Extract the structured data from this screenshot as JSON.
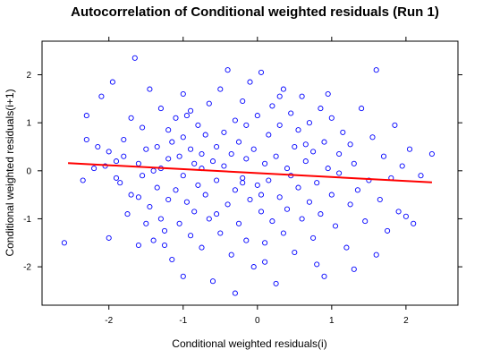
{
  "chart_data": {
    "type": "scatter",
    "title": "Autocorrelation of Conditional weighted residuals (Run 1)",
    "xlabel": "Conditional weighted residuals(i)",
    "ylabel": "Conditional weighted residuals(i+1)",
    "xlim": [
      -2.9,
      2.7
    ],
    "ylim": [
      -2.8,
      2.7
    ],
    "x_ticks": [
      -2,
      -1,
      0,
      1,
      2
    ],
    "y_ticks": [
      -2,
      -1,
      0,
      1,
      2
    ],
    "point_color": "#0000ff",
    "trend_color": "#ff0000",
    "trend_line": {
      "x": [
        -2.55,
        2.35
      ],
      "y": [
        0.16,
        -0.24
      ]
    },
    "grid": false,
    "points": [
      [
        -2.6,
        -1.5
      ],
      [
        -2.35,
        -0.2
      ],
      [
        -2.3,
        1.15
      ],
      [
        -2.3,
        0.65
      ],
      [
        -2.2,
        0.05
      ],
      [
        -2.15,
        0.5
      ],
      [
        -2.1,
        1.55
      ],
      [
        -2.05,
        0.1
      ],
      [
        -2.0,
        -1.4
      ],
      [
        -2.0,
        0.4
      ],
      [
        -1.95,
        1.85
      ],
      [
        -1.9,
        -0.15
      ],
      [
        -1.9,
        0.2
      ],
      [
        -1.85,
        -0.25
      ],
      [
        -1.8,
        0.65
      ],
      [
        -1.8,
        0.3
      ],
      [
        -1.75,
        -0.9
      ],
      [
        -1.7,
        -0.5
      ],
      [
        -1.7,
        1.1
      ],
      [
        -1.65,
        2.35
      ],
      [
        -1.6,
        -1.55
      ],
      [
        -1.6,
        0.15
      ],
      [
        -1.6,
        -0.55
      ],
      [
        -1.55,
        0.9
      ],
      [
        -1.5,
        0.45
      ],
      [
        -1.5,
        -1.1
      ],
      [
        -1.45,
        -0.75
      ],
      [
        -1.45,
        1.7
      ],
      [
        -1.4,
        0.0
      ],
      [
        -1.4,
        -1.45
      ],
      [
        -1.35,
        0.5
      ],
      [
        -1.35,
        -0.35
      ],
      [
        -1.3,
        1.3
      ],
      [
        -1.3,
        -1.0
      ],
      [
        -1.3,
        0.05
      ],
      [
        -1.25,
        -1.25
      ],
      [
        -1.2,
        0.85
      ],
      [
        -1.2,
        -0.6
      ],
      [
        -1.2,
        0.25
      ],
      [
        -1.15,
        -1.85
      ],
      [
        -1.15,
        0.6
      ],
      [
        -1.1,
        -0.4
      ],
      [
        -1.1,
        1.1
      ],
      [
        -1.05,
        0.3
      ],
      [
        -1.05,
        -1.1
      ],
      [
        -1.0,
        -2.2
      ],
      [
        -1.0,
        0.7
      ],
      [
        -1.0,
        -0.1
      ],
      [
        -0.95,
        1.15
      ],
      [
        -0.95,
        -0.65
      ],
      [
        -0.9,
        1.25
      ],
      [
        -0.9,
        0.45
      ],
      [
        -0.9,
        -1.35
      ],
      [
        -0.85,
        0.15
      ],
      [
        -0.85,
        -0.85
      ],
      [
        -0.8,
        -0.3
      ],
      [
        -0.8,
        0.95
      ],
      [
        -0.75,
        -1.6
      ],
      [
        -0.75,
        0.05
      ],
      [
        -0.7,
        0.75
      ],
      [
        -0.7,
        -0.5
      ],
      [
        -0.65,
        1.4
      ],
      [
        -0.65,
        -1.0
      ],
      [
        -0.6,
        0.2
      ],
      [
        -0.6,
        -2.3
      ],
      [
        -0.55,
        0.5
      ],
      [
        -0.55,
        -0.2
      ],
      [
        -0.5,
        1.7
      ],
      [
        -0.5,
        -1.3
      ],
      [
        -0.45,
        0.1
      ],
      [
        -0.45,
        0.8
      ],
      [
        -0.4,
        -0.7
      ],
      [
        -0.4,
        2.1
      ],
      [
        -0.35,
        -1.75
      ],
      [
        -0.35,
        0.35
      ],
      [
        -0.3,
        1.05
      ],
      [
        -0.3,
        -0.4
      ],
      [
        -0.25,
        -1.1
      ],
      [
        -0.25,
        0.6
      ],
      [
        -0.2,
        -0.15
      ],
      [
        -0.2,
        1.45
      ],
      [
        -0.15,
        -1.45
      ],
      [
        -0.15,
        0.25
      ],
      [
        -0.1,
        -0.6
      ],
      [
        -0.1,
        1.85
      ],
      [
        -0.05,
        0.45
      ],
      [
        -0.05,
        -2.0
      ],
      [
        0.0,
        -0.3
      ],
      [
        0.0,
        1.15
      ],
      [
        0.05,
        -0.85
      ],
      [
        0.05,
        2.05
      ],
      [
        0.1,
        0.15
      ],
      [
        0.1,
        -1.5
      ],
      [
        0.15,
        0.75
      ],
      [
        0.15,
        -0.2
      ],
      [
        0.2,
        -1.05
      ],
      [
        0.2,
        1.35
      ],
      [
        0.25,
        -2.35
      ],
      [
        0.25,
        0.3
      ],
      [
        0.3,
        -0.55
      ],
      [
        0.3,
        0.95
      ],
      [
        0.35,
        -1.3
      ],
      [
        0.35,
        1.7
      ],
      [
        0.4,
        0.05
      ],
      [
        0.4,
        -0.8
      ],
      [
        0.45,
        1.2
      ],
      [
        0.5,
        -1.7
      ],
      [
        0.5,
        0.5
      ],
      [
        0.55,
        -0.35
      ],
      [
        0.55,
        0.85
      ],
      [
        0.6,
        -1.0
      ],
      [
        0.6,
        1.55
      ],
      [
        0.65,
        0.2
      ],
      [
        0.7,
        -0.65
      ],
      [
        0.7,
        1.0
      ],
      [
        0.75,
        -1.4
      ],
      [
        0.75,
        0.4
      ],
      [
        0.8,
        -0.25
      ],
      [
        0.85,
        1.3
      ],
      [
        0.85,
        -0.9
      ],
      [
        0.9,
        0.6
      ],
      [
        0.9,
        -2.2
      ],
      [
        0.95,
        0.05
      ],
      [
        1.0,
        -0.5
      ],
      [
        1.0,
        1.1
      ],
      [
        1.05,
        -1.15
      ],
      [
        1.1,
        0.35
      ],
      [
        1.1,
        -0.05
      ],
      [
        1.15,
        0.8
      ],
      [
        1.2,
        -1.6
      ],
      [
        1.25,
        -0.7
      ],
      [
        1.25,
        0.55
      ],
      [
        1.3,
        0.15
      ],
      [
        1.35,
        -0.4
      ],
      [
        1.4,
        1.3
      ],
      [
        1.45,
        -1.05
      ],
      [
        1.5,
        -0.2
      ],
      [
        1.55,
        0.7
      ],
      [
        1.6,
        -1.75
      ],
      [
        1.6,
        2.1
      ],
      [
        1.65,
        -0.6
      ],
      [
        1.7,
        0.3
      ],
      [
        1.75,
        -1.25
      ],
      [
        1.8,
        -0.15
      ],
      [
        1.85,
        0.95
      ],
      [
        1.9,
        -0.85
      ],
      [
        1.95,
        0.1
      ],
      [
        2.0,
        -0.95
      ],
      [
        2.05,
        0.45
      ],
      [
        2.1,
        -1.1
      ],
      [
        2.2,
        -0.1
      ],
      [
        2.35,
        0.35
      ],
      [
        -0.3,
        -2.55
      ],
      [
        0.1,
        -1.9
      ],
      [
        -0.2,
        -0.25
      ],
      [
        0.05,
        -0.5
      ],
      [
        -0.55,
        -0.9
      ],
      [
        0.45,
        -0.1
      ],
      [
        -0.75,
        0.35
      ],
      [
        0.65,
        0.55
      ],
      [
        -1.0,
        1.6
      ],
      [
        0.3,
        1.55
      ],
      [
        -0.15,
        0.95
      ],
      [
        0.8,
        -1.95
      ],
      [
        -1.55,
        -0.1
      ],
      [
        1.3,
        -2.05
      ],
      [
        -1.25,
        -1.55
      ],
      [
        0.95,
        1.6
      ]
    ]
  }
}
